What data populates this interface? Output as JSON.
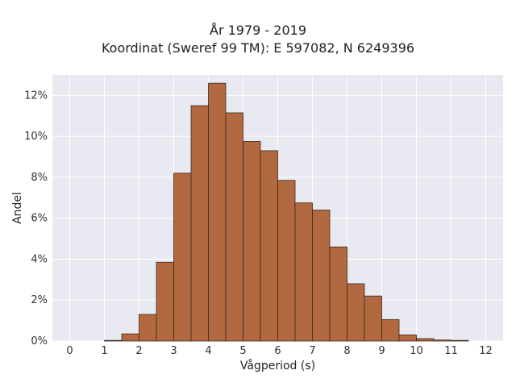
{
  "chart_data": {
    "type": "bar",
    "title_line1": "År 1979 - 2019",
    "title_line2": "Koordinat (Sweref 99 TM): E 597082, N 6249396",
    "xlabel": "Vågperiod (s)",
    "ylabel": "Andel",
    "xlim": [
      -0.5,
      12.5
    ],
    "ylim": [
      0,
      13
    ],
    "x_ticks": [
      0,
      1,
      2,
      3,
      4,
      5,
      6,
      7,
      8,
      9,
      10,
      11,
      12
    ],
    "y_ticks": [
      0,
      2,
      4,
      6,
      8,
      10,
      12
    ],
    "y_tick_labels": [
      "0%",
      "2%",
      "4%",
      "6%",
      "8%",
      "10%",
      "12%"
    ],
    "bin_width": 0.5,
    "bins": [
      {
        "start": 1.0,
        "value": 0.03
      },
      {
        "start": 1.5,
        "value": 0.35
      },
      {
        "start": 2.0,
        "value": 1.3
      },
      {
        "start": 2.5,
        "value": 3.85
      },
      {
        "start": 3.0,
        "value": 8.2
      },
      {
        "start": 3.5,
        "value": 11.5
      },
      {
        "start": 4.0,
        "value": 12.6
      },
      {
        "start": 4.5,
        "value": 11.15
      },
      {
        "start": 5.0,
        "value": 9.75
      },
      {
        "start": 5.5,
        "value": 9.3
      },
      {
        "start": 6.0,
        "value": 7.85
      },
      {
        "start": 6.5,
        "value": 6.75
      },
      {
        "start": 7.0,
        "value": 6.4
      },
      {
        "start": 7.5,
        "value": 4.6
      },
      {
        "start": 8.0,
        "value": 2.8
      },
      {
        "start": 8.5,
        "value": 2.2
      },
      {
        "start": 9.0,
        "value": 1.05
      },
      {
        "start": 9.5,
        "value": 0.3
      },
      {
        "start": 10.0,
        "value": 0.12
      },
      {
        "start": 10.5,
        "value": 0.05
      },
      {
        "start": 11.0,
        "value": 0.03
      }
    ],
    "grid": true,
    "colors": {
      "bar_fill": "#B3693F",
      "bar_edge": "#3A2A20",
      "plot_bg": "#E9E9F1",
      "grid": "#FFFFFF"
    }
  }
}
